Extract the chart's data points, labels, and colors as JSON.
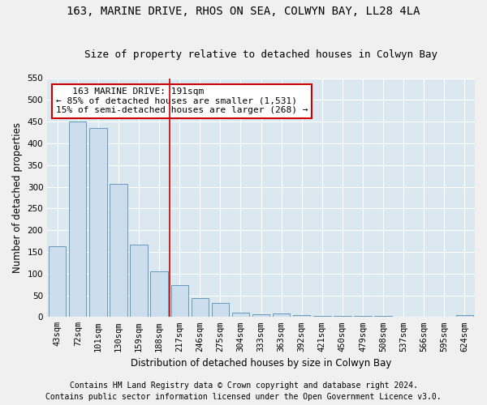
{
  "title": "163, MARINE DRIVE, RHOS ON SEA, COLWYN BAY, LL28 4LA",
  "subtitle": "Size of property relative to detached houses in Colwyn Bay",
  "xlabel": "Distribution of detached houses by size in Colwyn Bay",
  "ylabel": "Number of detached properties",
  "categories": [
    "43sqm",
    "72sqm",
    "101sqm",
    "130sqm",
    "159sqm",
    "188sqm",
    "217sqm",
    "246sqm",
    "275sqm",
    "304sqm",
    "333sqm",
    "363sqm",
    "392sqm",
    "421sqm",
    "450sqm",
    "479sqm",
    "508sqm",
    "537sqm",
    "566sqm",
    "595sqm",
    "624sqm"
  ],
  "values": [
    163,
    450,
    435,
    307,
    167,
    105,
    73,
    44,
    32,
    10,
    7,
    8,
    5,
    2,
    2,
    2,
    2,
    1,
    1,
    1,
    5
  ],
  "bar_color": "#ccdded",
  "bar_edge_color": "#6699bb",
  "vline_x": 5.5,
  "vline_color": "#cc0000",
  "annotation_text": "   163 MARINE DRIVE: 191sqm\n← 85% of detached houses are smaller (1,531)\n15% of semi-detached houses are larger (268) →",
  "annotation_box_color": "#ffffff",
  "annotation_box_edge": "#cc0000",
  "ylim": [
    0,
    550
  ],
  "yticks": [
    0,
    50,
    100,
    150,
    200,
    250,
    300,
    350,
    400,
    450,
    500,
    550
  ],
  "footer1": "Contains HM Land Registry data © Crown copyright and database right 2024.",
  "footer2": "Contains public sector information licensed under the Open Government Licence v3.0.",
  "plot_bg_color": "#dce8f0",
  "fig_bg_color": "#f0f0f0",
  "grid_color": "#ffffff",
  "title_fontsize": 10,
  "subtitle_fontsize": 9,
  "axis_label_fontsize": 8.5,
  "tick_fontsize": 7.5,
  "footer_fontsize": 7,
  "annot_fontsize": 8
}
